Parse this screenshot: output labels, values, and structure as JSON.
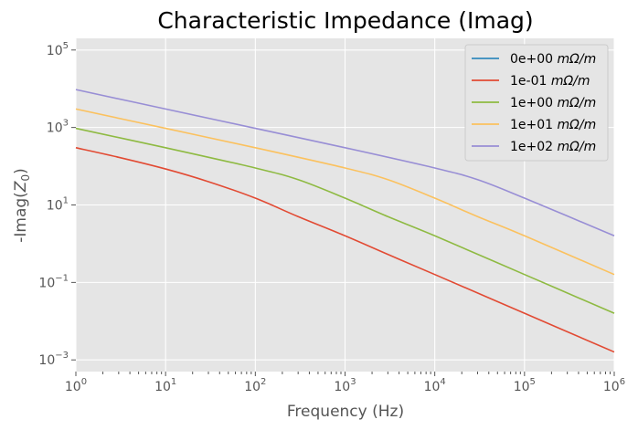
{
  "chart_data": {
    "type": "line",
    "title": "Characteristic Impedance (Imag)",
    "xlabel": "Frequency (Hz)",
    "ylabel_base": "-Imag(",
    "ylabel_var": "Z",
    "ylabel_sub": "0",
    "ylabel_end": ")",
    "xscale": "log",
    "yscale": "log",
    "xlim": [
      1,
      1000000
    ],
    "ylim": [
      0.0005,
      200000
    ],
    "x_ticks": [
      {
        "value": 1,
        "base": "10",
        "exp": "0"
      },
      {
        "value": 10,
        "base": "10",
        "exp": "1"
      },
      {
        "value": 100,
        "base": "10",
        "exp": "2"
      },
      {
        "value": 1000,
        "base": "10",
        "exp": "3"
      },
      {
        "value": 10000,
        "base": "10",
        "exp": "4"
      },
      {
        "value": 100000,
        "base": "10",
        "exp": "5"
      },
      {
        "value": 1000000,
        "base": "10",
        "exp": "6"
      }
    ],
    "y_ticks": [
      {
        "value": 0.001,
        "base": "10",
        "exp": "−3"
      },
      {
        "value": 0.1,
        "base": "10",
        "exp": "−1"
      },
      {
        "value": 10,
        "base": "10",
        "exp": "1"
      },
      {
        "value": 1000,
        "base": "10",
        "exp": "3"
      },
      {
        "value": 100000,
        "base": "10",
        "exp": "5"
      }
    ],
    "grid": true,
    "legend_position": "top-right",
    "background": "#e5e5e5",
    "series": [
      {
        "name": "0e+00 mΩ/m",
        "legend_num": "0e+00",
        "color": "#348abd",
        "x": [],
        "y": []
      },
      {
        "name": "1e-01 mΩ/m",
        "legend_num": "1e-01",
        "color": "#e24a33",
        "x": [
          1,
          3,
          10,
          30,
          100,
          300,
          1000,
          3000,
          10000,
          100000,
          1000000
        ],
        "y": [
          300,
          170,
          85,
          40,
          15,
          5,
          1.6,
          0.53,
          0.16,
          0.016,
          0.0016
        ]
      },
      {
        "name": "1e+00 mΩ/m",
        "legend_num": "1e+00",
        "color": "#8eba42",
        "x": [
          1,
          10,
          100,
          300,
          1000,
          3000,
          10000,
          100000,
          1000000
        ],
        "y": [
          950,
          300,
          90,
          45,
          15,
          5,
          1.6,
          0.16,
          0.016
        ]
      },
      {
        "name": "1e+01 mΩ/m",
        "legend_num": "1e+01",
        "color": "#fbc15e",
        "x": [
          1,
          10,
          100,
          1000,
          3000,
          10000,
          30000,
          100000,
          1000000
        ],
        "y": [
          3000,
          950,
          300,
          90,
          45,
          15,
          5,
          1.6,
          0.16
        ]
      },
      {
        "name": "1e+02 mΩ/m",
        "legend_num": "1e+02",
        "color": "#988ed5",
        "x": [
          1,
          10,
          100,
          1000,
          10000,
          30000,
          100000,
          1000000
        ],
        "y": [
          9500,
          3000,
          950,
          300,
          90,
          45,
          15,
          1.6
        ]
      }
    ]
  }
}
